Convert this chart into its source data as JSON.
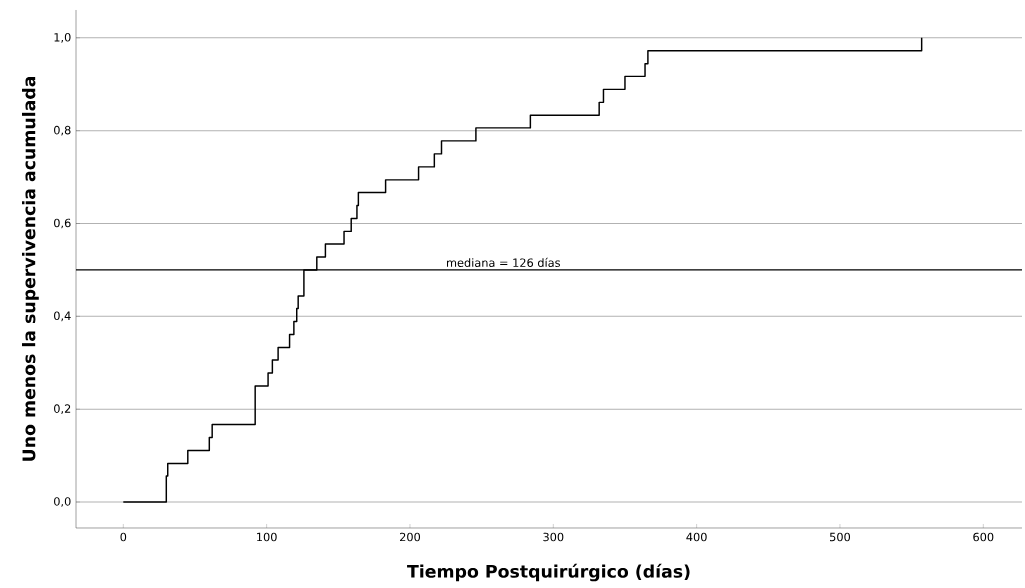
{
  "chart_data": {
    "type": "step",
    "xlabel": "Tiempo Postquirúrgico (días)",
    "ylabel": "Uno menos la supervivencia acumulada",
    "series": [
      {
        "color": "#000000",
        "x": [
          0,
          30,
          31,
          45,
          60,
          62,
          92,
          101,
          104,
          108,
          116,
          119,
          121,
          122,
          126,
          135,
          141,
          154,
          159,
          163,
          164,
          183,
          206,
          217,
          222,
          246,
          284,
          332,
          335,
          350,
          364,
          366,
          557
        ],
        "values": [
          0,
          0.056,
          0.083,
          0.111,
          0.139,
          0.167,
          0.25,
          0.278,
          0.306,
          0.333,
          0.361,
          0.389,
          0.417,
          0.444,
          0.5,
          0.528,
          0.556,
          0.583,
          0.611,
          0.639,
          0.667,
          0.694,
          0.722,
          0.75,
          0.778,
          0.806,
          0.833,
          0.861,
          0.889,
          0.917,
          0.944,
          0.972,
          1.0
        ]
      }
    ],
    "xlim": [
      -33,
      627
    ],
    "ylim": [
      -0.056,
      1.06
    ],
    "xticks": [
      0,
      100,
      200,
      300,
      400,
      500,
      600
    ],
    "yticks": [
      {
        "value": 0,
        "label": "0,0"
      },
      {
        "value": 0.2,
        "label": "0,2"
      },
      {
        "value": 0.4,
        "label": "0,4"
      },
      {
        "value": 0.6,
        "label": "0,6"
      },
      {
        "value": 0.8,
        "label": "0,8"
      },
      {
        "value": 1.0,
        "label": "1,0"
      }
    ],
    "grid": "y",
    "marker": "none",
    "line_style": "solid",
    "ref_lines": [
      {
        "axis": "y",
        "value": 0.5,
        "color": "#000000"
      }
    ],
    "annotations": [
      "mediana = 126 días"
    ]
  }
}
